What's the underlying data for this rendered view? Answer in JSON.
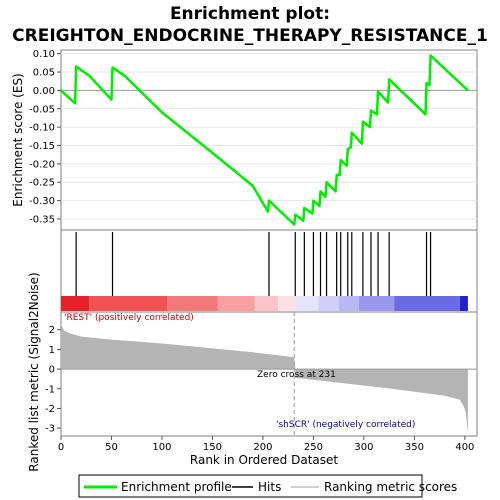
{
  "chart_data": {
    "type": "line",
    "title_line1": "Enrichment plot:",
    "title_line2": "CREIGHTON_ENDOCRINE_THERAPY_RESISTANCE_1",
    "es_panel": {
      "ylabel": "Enrichment score (ES)",
      "ylim": [
        -0.38,
        0.11
      ],
      "yticks": [
        0.1,
        0.05,
        0.0,
        -0.05,
        -0.1,
        -0.15,
        -0.2,
        -0.25,
        -0.3,
        -0.35
      ],
      "ytick_labels": [
        "0.10",
        "0.05",
        "0.00",
        "-0.05",
        "-0.10",
        "-0.15",
        "-0.20",
        "-0.25",
        "-0.30",
        "-0.35"
      ],
      "color": "#00ee00",
      "points": [
        [
          0,
          0.0
        ],
        [
          14,
          -0.035
        ],
        [
          15,
          0.065
        ],
        [
          28,
          0.04
        ],
        [
          50,
          -0.025
        ],
        [
          51,
          0.062
        ],
        [
          63,
          0.04
        ],
        [
          100,
          -0.06
        ],
        [
          150,
          -0.17
        ],
        [
          190,
          -0.26
        ],
        [
          205,
          -0.33
        ],
        [
          206,
          -0.3
        ],
        [
          231,
          -0.365
        ],
        [
          232,
          -0.338
        ],
        [
          240,
          -0.355
        ],
        [
          241,
          -0.32
        ],
        [
          249,
          -0.335
        ],
        [
          250,
          -0.3
        ],
        [
          256,
          -0.315
        ],
        [
          257,
          -0.275
        ],
        [
          262,
          -0.29
        ],
        [
          263,
          -0.25
        ],
        [
          272,
          -0.275
        ],
        [
          273,
          -0.23
        ],
        [
          276,
          -0.23
        ],
        [
          277,
          -0.19
        ],
        [
          283,
          -0.205
        ],
        [
          284,
          -0.16
        ],
        [
          287,
          -0.155
        ],
        [
          288,
          -0.115
        ],
        [
          298,
          -0.145
        ],
        [
          299,
          -0.085
        ],
        [
          306,
          -0.1
        ],
        [
          307,
          -0.055
        ],
        [
          313,
          -0.065
        ],
        [
          314,
          -0.003
        ],
        [
          324,
          -0.033
        ],
        [
          325,
          0.03
        ],
        [
          361,
          -0.065
        ],
        [
          362,
          0.02
        ],
        [
          365,
          0.015
        ],
        [
          366,
          0.095
        ],
        [
          403,
          0.0
        ]
      ]
    },
    "hits": [
      15,
      51,
      206,
      232,
      241,
      250,
      257,
      263,
      273,
      277,
      284,
      288,
      299,
      307,
      314,
      325,
      362,
      366
    ],
    "gradient_bar": {
      "segments": [
        {
          "from": 0,
          "to": 28,
          "color": "#e8202a"
        },
        {
          "from": 28,
          "to": 105,
          "color": "#f05252"
        },
        {
          "from": 105,
          "to": 155,
          "color": "#f47a7a"
        },
        {
          "from": 155,
          "to": 192,
          "color": "#f8a0a0"
        },
        {
          "from": 192,
          "to": 215,
          "color": "#fbc4c8"
        },
        {
          "from": 215,
          "to": 232,
          "color": "#fde0e6"
        },
        {
          "from": 232,
          "to": 255,
          "color": "#e4e4fb"
        },
        {
          "from": 255,
          "to": 275,
          "color": "#cfcff8"
        },
        {
          "from": 275,
          "to": 295,
          "color": "#b8b8f4"
        },
        {
          "from": 295,
          "to": 330,
          "color": "#9898ee"
        },
        {
          "from": 330,
          "to": 395,
          "color": "#6a6ae4"
        },
        {
          "from": 395,
          "to": 403,
          "color": "#2222cc"
        }
      ]
    },
    "metric_panel": {
      "ylabel": "Ranked list metric (Signal2Noise)",
      "ylim": [
        -3.4,
        2.9
      ],
      "yticks": [
        2,
        1,
        0,
        -1,
        -2,
        -3
      ],
      "ytick_labels": [
        "2",
        "1",
        "0",
        "-1",
        "-2",
        "-3"
      ],
      "fill_color": "#b4b4b4",
      "points": [
        [
          0,
          2.3
        ],
        [
          3,
          1.95
        ],
        [
          10,
          1.8
        ],
        [
          20,
          1.65
        ],
        [
          30,
          1.6
        ],
        [
          50,
          1.5
        ],
        [
          70,
          1.42
        ],
        [
          100,
          1.3
        ],
        [
          130,
          1.15
        ],
        [
          160,
          1.0
        ],
        [
          190,
          0.85
        ],
        [
          215,
          0.7
        ],
        [
          231,
          0.6
        ],
        [
          232,
          0.0
        ],
        [
          232,
          -0.45
        ],
        [
          260,
          -0.6
        ],
        [
          290,
          -0.78
        ],
        [
          320,
          -0.95
        ],
        [
          350,
          -1.15
        ],
        [
          380,
          -1.35
        ],
        [
          395,
          -1.55
        ],
        [
          398,
          -1.8
        ],
        [
          401,
          -2.2
        ],
        [
          402,
          -2.8
        ],
        [
          403,
          -3.2
        ]
      ],
      "label_positive": "'REST' (positively correlated)",
      "label_negative": "'shSCR' (negatively correlated)",
      "zero_cross_label": "Zero cross at 231",
      "zero_cross": 231
    },
    "x_axis": {
      "xlabel": "Rank in Ordered Dataset",
      "xlim": [
        0,
        412
      ],
      "xticks": [
        0,
        50,
        100,
        150,
        200,
        250,
        300,
        350,
        400
      ],
      "xtick_labels": [
        "0",
        "50",
        "100",
        "150",
        "200",
        "250",
        "300",
        "350",
        "400"
      ]
    },
    "legend": {
      "position": "bottom",
      "items": [
        {
          "label": "Enrichment profile",
          "color": "#00ee00",
          "kind": "thick-line"
        },
        {
          "label": "Hits",
          "color": "#000000",
          "kind": "line"
        },
        {
          "label": "Ranking metric scores",
          "color": "#c0c0c0",
          "kind": "line"
        }
      ]
    }
  }
}
